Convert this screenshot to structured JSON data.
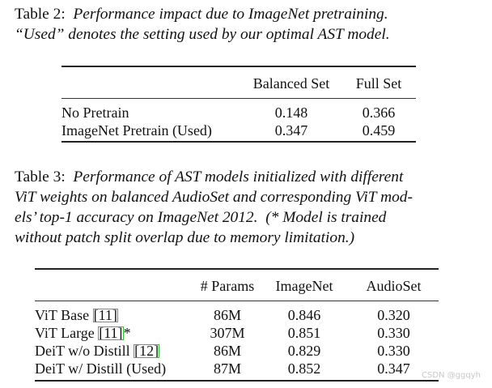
{
  "table2": {
    "caption_label": "Table 2:",
    "caption_line1": "Performance impact due to ImageNet pretraining.",
    "caption_line2": "“Used” denotes the setting used by our optimal AST model.",
    "headers": [
      "",
      "Balanced Set",
      "Full Set"
    ],
    "rows": [
      [
        "No Pretrain",
        "0.148",
        "0.366"
      ],
      [
        "ImageNet Pretrain (Used)",
        "0.347",
        "0.459"
      ]
    ]
  },
  "table3": {
    "caption_label": "Table 3:",
    "caption_line1": "Performance of AST models initialized with different",
    "caption_line2": "ViT weights on balanced AudioSet and corresponding ViT mod-",
    "caption_line3": "els’ top-1 accuracy on ImageNet 2012.",
    "caption_line3b": "(* Model is trained",
    "caption_line4": "without patch split overlap due to memory limitation.)",
    "headers": [
      "",
      "# Params",
      "ImageNet",
      "AudioSet"
    ],
    "rows": [
      {
        "name": "ViT Base",
        "cite": "[11]",
        "suffix": "",
        "params": "86M",
        "imagenet": "0.846",
        "audioset": "0.320"
      },
      {
        "name": "ViT Large",
        "cite": "[11]",
        "suffix": "*",
        "params": "307M",
        "imagenet": "0.851",
        "audioset": "0.330"
      },
      {
        "name": "DeiT w/o Distill",
        "cite": "[12]",
        "suffix": "",
        "params": "86M",
        "imagenet": "0.829",
        "audioset": "0.330"
      },
      {
        "name": "DeiT w/ Distill (Used)",
        "cite": "",
        "suffix": "",
        "params": "87M",
        "imagenet": "0.852",
        "audioset": "0.347"
      }
    ]
  },
  "watermark": "CSDN @ggqyh",
  "colors": {
    "text": "#111111",
    "rule": "#222222",
    "citation_box": "#20d020",
    "watermark": "#c8c8c8"
  }
}
